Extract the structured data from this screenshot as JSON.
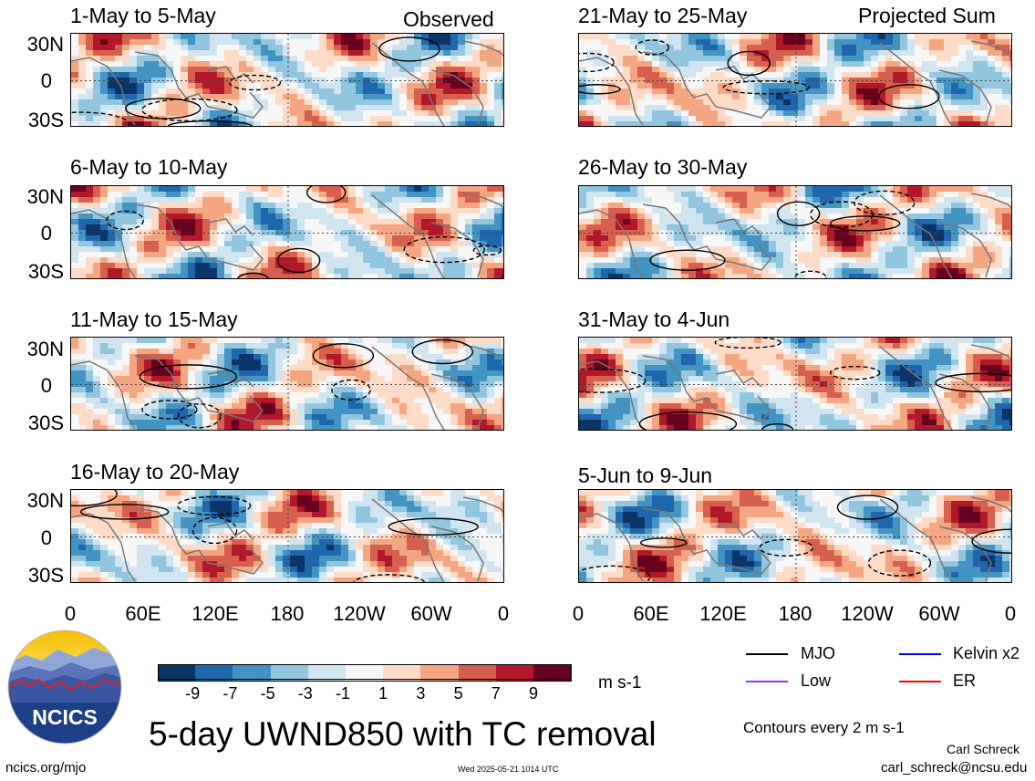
{
  "panels_left": [
    {
      "title": "1-May to 5-May",
      "tag": "Observed"
    },
    {
      "title": "6-May to 10-May",
      "tag": ""
    },
    {
      "title": "11-May to 15-May",
      "tag": ""
    },
    {
      "title": "16-May to 20-May",
      "tag": ""
    }
  ],
  "panels_right": [
    {
      "title": "21-May to 25-May",
      "tag": "Projected Sum"
    },
    {
      "title": "26-May to 30-May",
      "tag": ""
    },
    {
      "title": "31-May to 4-Jun",
      "tag": ""
    },
    {
      "title": "5-Jun to 9-Jun",
      "tag": ""
    }
  ],
  "lat_labels": [
    "30N",
    "0",
    "30S"
  ],
  "lon_labels": [
    "0",
    "60E",
    "120E",
    "180",
    "120W",
    "60W",
    "0"
  ],
  "colorbar": {
    "labels": [
      "-9",
      "-7",
      "-5",
      "-3",
      "-1",
      "1",
      "3",
      "5",
      "7",
      "9"
    ],
    "colors": [
      "#0b3566",
      "#2066ac",
      "#4393c3",
      "#92c5de",
      "#d1e5f0",
      "#f7f7f7",
      "#fddbc7",
      "#f4a582",
      "#d6604d",
      "#b2182b",
      "#67001f"
    ],
    "unit": "m s-1"
  },
  "legend": [
    {
      "label": "MJO",
      "color": "#000000"
    },
    {
      "label": "Kelvin x2",
      "color": "#0000ff"
    },
    {
      "label": "Low",
      "color": "#9933ff"
    },
    {
      "label": "ER",
      "color": "#ff0000"
    }
  ],
  "main_title": "5-day UWND850 with TC removal",
  "contours_note": "Contours every 2 m s-1",
  "author": "Carl Schreck",
  "email": "carl_schreck@ncsu.edu",
  "website": "ncics.org/mjo",
  "timestamp": "Wed 2025-05-21 1014 UTC",
  "logo_text": "NCICS"
}
